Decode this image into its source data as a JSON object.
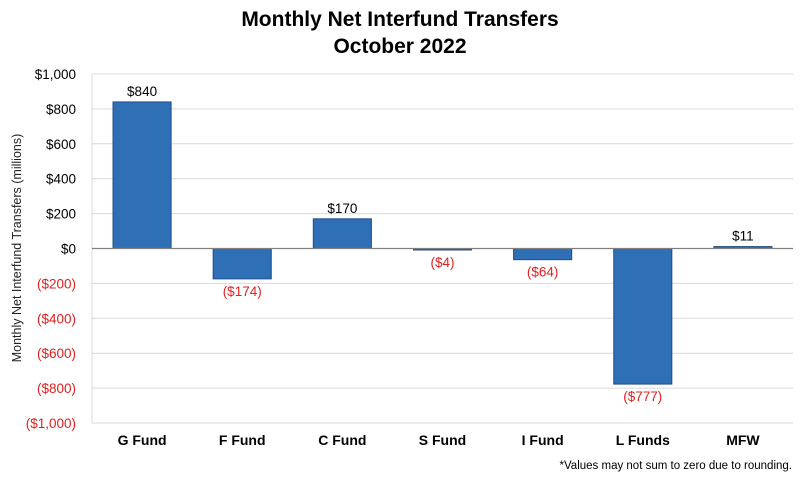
{
  "chart_data": {
    "type": "bar",
    "title": "Monthly Net Interfund Transfers",
    "subtitle": "October 2022",
    "ylabel": "Monthly Net Interfund Transfers (millions)",
    "xlabel": "",
    "categories": [
      "G Fund",
      "F Fund",
      "C Fund",
      "S Fund",
      "I Fund",
      "L Funds",
      "MFW"
    ],
    "values": [
      840,
      -174,
      170,
      -4,
      -64,
      -777,
      11
    ],
    "data_labels": [
      "$840",
      "($174)",
      "$170",
      "($4)",
      "($64)",
      "($777)",
      "$11"
    ],
    "ylim": [
      -1000,
      1000
    ],
    "yticks": [
      1000,
      800,
      600,
      400,
      200,
      0,
      -200,
      -400,
      -600,
      -800,
      -1000
    ],
    "ytick_labels": [
      "$1,000",
      "$800",
      "$600",
      "$400",
      "$200",
      "$0",
      "($200)",
      "($400)",
      "($600)",
      "($800)",
      "($1,000)"
    ],
    "grid": true,
    "footnote": "*Values may not sum to zero due to rounding.",
    "colors": {
      "bar": "#2e6fb6",
      "bar_border": "#1f4e87",
      "negative_label": "#e02020",
      "grid": "#d9d9d9",
      "zero_line": "#7f7f7f"
    }
  }
}
